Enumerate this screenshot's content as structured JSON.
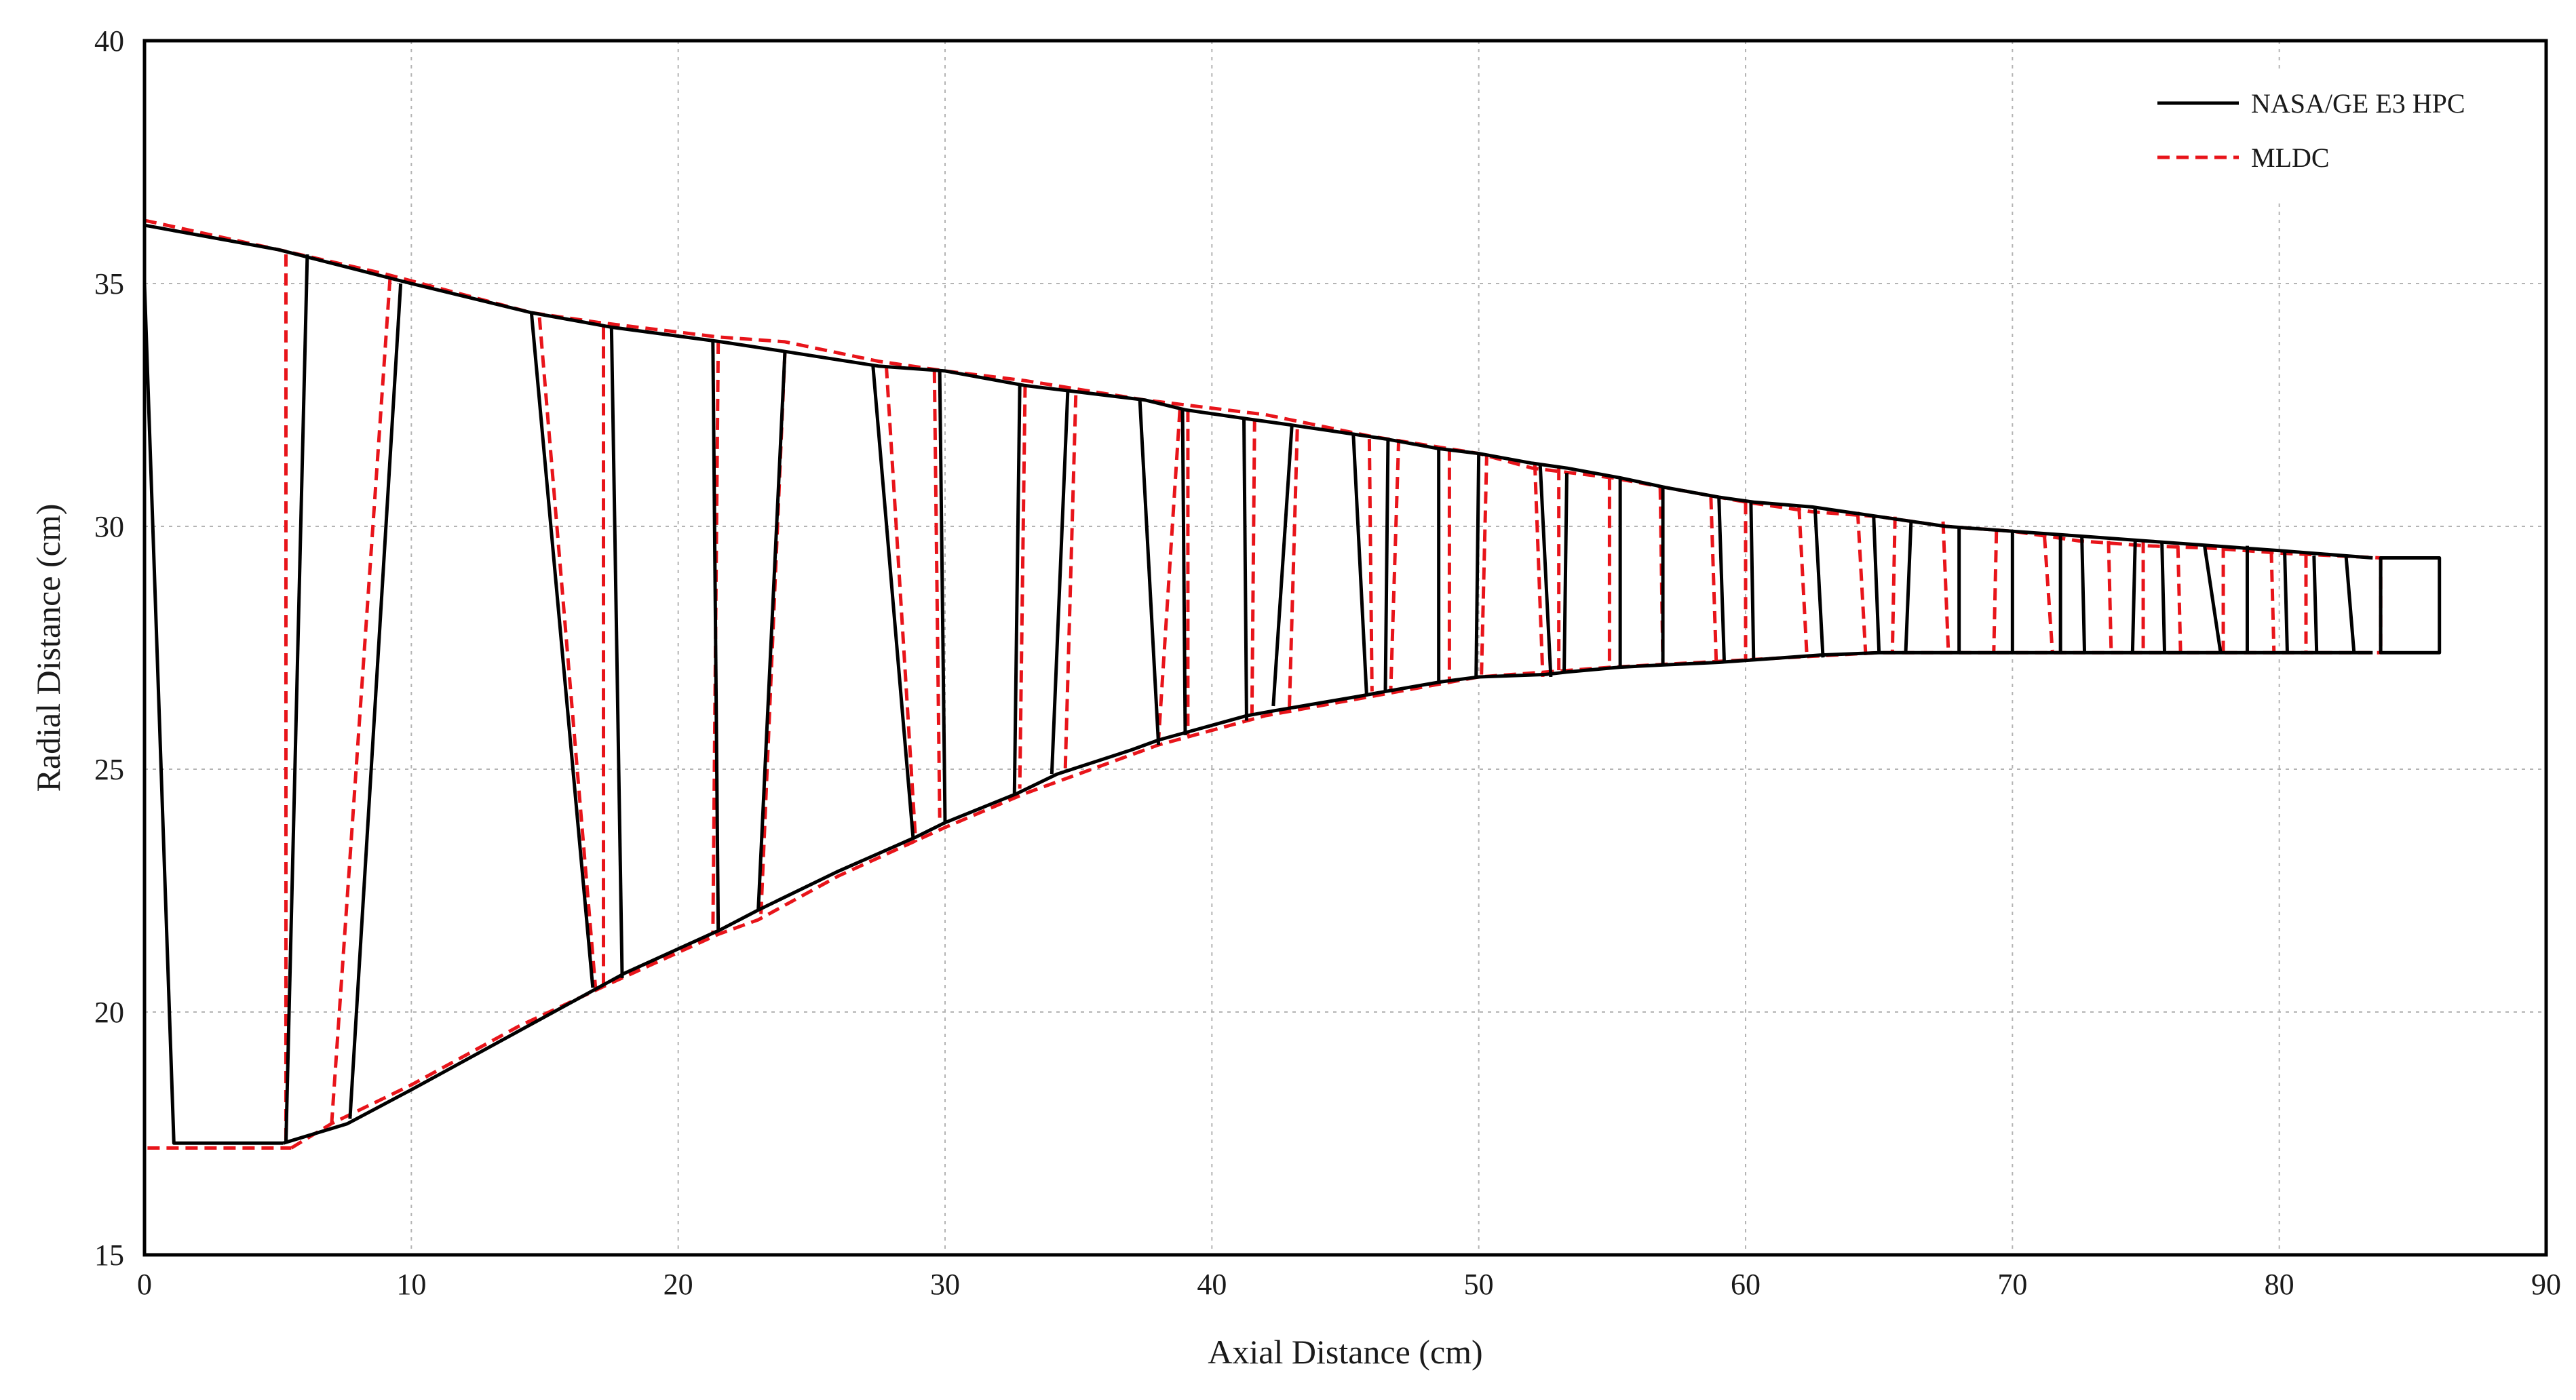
{
  "chart_data": {
    "type": "line",
    "title": "",
    "xlabel": "Axial Distance (cm)",
    "ylabel": "Radial Distance (cm)",
    "xlim": [
      0,
      90
    ],
    "ylim": [
      15,
      40
    ],
    "x_ticks": [
      0,
      10,
      20,
      30,
      40,
      50,
      60,
      70,
      80,
      90
    ],
    "y_ticks": [
      15,
      20,
      25,
      30,
      35,
      40
    ],
    "grid": true,
    "legend_position": "top-right",
    "series": [
      {
        "name": "NASA/GE E3 HPC",
        "color": "#000000",
        "dash": "solid",
        "hub": [
          [
            5.2,
            17.3
          ],
          [
            7.6,
            17.7
          ],
          [
            10,
            18.4
          ],
          [
            14,
            19.6
          ],
          [
            18,
            20.8
          ],
          [
            21.6,
            21.7
          ],
          [
            23,
            22.1
          ],
          [
            26,
            22.9
          ],
          [
            28.9,
            23.6
          ],
          [
            30,
            23.9
          ],
          [
            32.7,
            24.5
          ],
          [
            34.2,
            24.9
          ],
          [
            37,
            25.4
          ],
          [
            38,
            25.6
          ],
          [
            41.3,
            26.1
          ],
          [
            42.3,
            26.2
          ],
          [
            45.5,
            26.5
          ],
          [
            46.5,
            26.6
          ],
          [
            48.6,
            26.8
          ],
          [
            50,
            26.9
          ],
          [
            52.5,
            26.95
          ],
          [
            53.3,
            27.0
          ],
          [
            55.3,
            27.1
          ],
          [
            57,
            27.15
          ],
          [
            59,
            27.2
          ],
          [
            60.3,
            27.25
          ],
          [
            62.8,
            27.35
          ],
          [
            65,
            27.4
          ],
          [
            70,
            27.4
          ],
          [
            75,
            27.4
          ],
          [
            80,
            27.4
          ],
          [
            83.5,
            27.4
          ]
        ],
        "casing": [
          [
            0,
            36.2
          ],
          [
            5,
            35.7
          ],
          [
            10,
            35.0
          ],
          [
            14.5,
            34.4
          ],
          [
            17.5,
            34.1
          ],
          [
            21.6,
            33.8
          ],
          [
            24,
            33.6
          ],
          [
            27.5,
            33.3
          ],
          [
            30,
            33.2
          ],
          [
            33,
            32.9
          ],
          [
            34.5,
            32.8
          ],
          [
            37.5,
            32.6
          ],
          [
            39,
            32.4
          ],
          [
            41.5,
            32.2
          ],
          [
            42.8,
            32.1
          ],
          [
            45.3,
            31.9
          ],
          [
            46.5,
            31.8
          ],
          [
            48.5,
            31.6
          ],
          [
            50,
            31.5
          ],
          [
            52,
            31.3
          ],
          [
            53.3,
            31.2
          ],
          [
            55.3,
            31.0
          ],
          [
            57,
            30.8
          ],
          [
            59,
            30.6
          ],
          [
            60.3,
            30.5
          ],
          [
            62.5,
            30.4
          ],
          [
            65,
            30.2
          ],
          [
            67.5,
            30.0
          ],
          [
            70,
            29.9
          ],
          [
            72.5,
            29.8
          ],
          [
            75,
            29.7
          ],
          [
            77.5,
            29.6
          ],
          [
            80,
            29.5
          ],
          [
            83.5,
            29.35
          ]
        ],
        "closure": [
          [
            0,
            36.2
          ],
          [
            0,
            35.0
          ],
          [
            1.1,
            17.3
          ],
          [
            5.2,
            17.3
          ]
        ],
        "exit_box": [
          [
            83.8,
            29.35
          ],
          [
            86,
            29.35
          ],
          [
            86,
            27.4
          ],
          [
            83.8,
            27.4
          ]
        ],
        "blades": [
          [
            6.1,
            35.6,
            5.3,
            17.3
          ],
          [
            9.6,
            35.0,
            7.7,
            17.8
          ],
          [
            14.5,
            34.4,
            16.8,
            20.5
          ],
          [
            17.5,
            34.1,
            17.9,
            20.7
          ],
          [
            21.3,
            33.8,
            21.5,
            21.7
          ],
          [
            24,
            33.6,
            23,
            22.1
          ],
          [
            27.3,
            33.3,
            28.8,
            23.6
          ],
          [
            29.8,
            33.2,
            30,
            23.9
          ],
          [
            32.8,
            32.9,
            32.6,
            24.5
          ],
          [
            34.6,
            32.8,
            34,
            24.9
          ],
          [
            37.3,
            32.6,
            38,
            25.5
          ],
          [
            38.9,
            32.4,
            39,
            25.7
          ],
          [
            41.2,
            32.2,
            41.3,
            26.0
          ],
          [
            43,
            32.1,
            42.3,
            26.3
          ],
          [
            45.3,
            31.9,
            45.8,
            26.5
          ],
          [
            46.6,
            31.8,
            46.5,
            26.6
          ],
          [
            48.5,
            31.6,
            48.5,
            26.8
          ],
          [
            50,
            31.5,
            49.9,
            26.9
          ],
          [
            52.3,
            31.3,
            52.7,
            26.9
          ],
          [
            53.3,
            31.1,
            53.2,
            27.0
          ],
          [
            55.3,
            31.0,
            55.3,
            27.1
          ],
          [
            56.9,
            30.8,
            56.9,
            27.15
          ],
          [
            59,
            30.6,
            59.2,
            27.2
          ],
          [
            60.2,
            30.5,
            60.3,
            27.25
          ],
          [
            62.6,
            30.4,
            62.9,
            27.3
          ],
          [
            64.8,
            30.2,
            65,
            27.4
          ],
          [
            66.2,
            30.1,
            66,
            27.4
          ],
          [
            68,
            30.0,
            68,
            27.4
          ],
          [
            70,
            29.9,
            70,
            27.4
          ],
          [
            71.8,
            29.8,
            71.8,
            27.4
          ],
          [
            72.6,
            29.8,
            72.7,
            27.4
          ],
          [
            74.6,
            29.7,
            74.5,
            27.4
          ],
          [
            75.6,
            29.7,
            75.7,
            27.4
          ],
          [
            77.2,
            29.6,
            77.8,
            27.4
          ],
          [
            78.8,
            29.6,
            78.8,
            27.4
          ],
          [
            80.2,
            29.5,
            80.3,
            27.4
          ],
          [
            81.3,
            29.4,
            81.4,
            27.4
          ],
          [
            82.5,
            29.4,
            82.8,
            27.4
          ]
        ]
      },
      {
        "name": "MLDC",
        "color": "#e8141a",
        "dash": "dashed",
        "hub": [
          [
            5.5,
            17.2
          ],
          [
            7,
            17.7
          ],
          [
            10,
            18.5
          ],
          [
            14,
            19.7
          ],
          [
            17.5,
            20.6
          ],
          [
            21.5,
            21.6
          ],
          [
            23,
            21.9
          ],
          [
            26,
            22.8
          ],
          [
            30,
            23.8
          ],
          [
            33,
            24.5
          ],
          [
            38,
            25.5
          ],
          [
            42,
            26.1
          ],
          [
            46,
            26.5
          ],
          [
            50,
            26.9
          ],
          [
            55,
            27.1
          ],
          [
            60,
            27.25
          ],
          [
            65,
            27.4
          ],
          [
            70,
            27.4
          ],
          [
            75,
            27.4
          ],
          [
            80,
            27.4
          ],
          [
            83.8,
            27.4
          ]
        ],
        "casing": [
          [
            0,
            36.3
          ],
          [
            5,
            35.7
          ],
          [
            9,
            35.2
          ],
          [
            14.5,
            34.4
          ],
          [
            17,
            34.2
          ],
          [
            21.5,
            33.9
          ],
          [
            24,
            33.8
          ],
          [
            27.5,
            33.4
          ],
          [
            30,
            33.2
          ],
          [
            33,
            33.0
          ],
          [
            37.5,
            32.6
          ],
          [
            42,
            32.3
          ],
          [
            46,
            31.85
          ],
          [
            50,
            31.5
          ],
          [
            52,
            31.2
          ],
          [
            55,
            31.0
          ],
          [
            57,
            30.8
          ],
          [
            60,
            30.5
          ],
          [
            62.5,
            30.3
          ],
          [
            65,
            30.2
          ],
          [
            67.5,
            30.0
          ],
          [
            70,
            29.9
          ],
          [
            72.5,
            29.7
          ],
          [
            75,
            29.6
          ],
          [
            77.5,
            29.55
          ],
          [
            80,
            29.45
          ],
          [
            83.8,
            29.35
          ]
        ],
        "closure": [
          [
            0,
            36.3
          ],
          [
            0,
            17.2
          ],
          [
            5.5,
            17.2
          ]
        ],
        "blades": [
          [
            5.3,
            35.6,
            5.3,
            17.2
          ],
          [
            9.2,
            35.1,
            7.0,
            17.6
          ],
          [
            14.8,
            34.3,
            16.9,
            20.5
          ],
          [
            17.2,
            34.1,
            17.2,
            20.5
          ],
          [
            21.5,
            33.8,
            21.3,
            21.6
          ],
          [
            24,
            33.6,
            23.1,
            22.0
          ],
          [
            27.8,
            33.3,
            28.9,
            23.5
          ],
          [
            29.6,
            33.2,
            29.8,
            24.0
          ],
          [
            33,
            32.9,
            32.8,
            24.6
          ],
          [
            34.9,
            32.7,
            34.5,
            24.9
          ],
          [
            38.8,
            32.4,
            38,
            25.6
          ],
          [
            39.1,
            32.4,
            39.1,
            25.7
          ],
          [
            41.6,
            32.2,
            41.5,
            26.1
          ],
          [
            43.2,
            32.0,
            42.9,
            26.2
          ],
          [
            45.9,
            31.8,
            46,
            26.6
          ],
          [
            47,
            31.8,
            46.7,
            26.6
          ],
          [
            48.9,
            31.6,
            48.9,
            26.8
          ],
          [
            50.3,
            31.5,
            50.1,
            26.9
          ],
          [
            52.1,
            31.3,
            52.4,
            26.9
          ],
          [
            53,
            31.2,
            53.0,
            27.0
          ],
          [
            54.9,
            31.0,
            54.9,
            27.1
          ],
          [
            56.8,
            30.8,
            56.9,
            27.15
          ],
          [
            58.7,
            30.6,
            58.9,
            27.2
          ],
          [
            60,
            30.5,
            60.0,
            27.25
          ],
          [
            62,
            30.4,
            62.3,
            27.3
          ],
          [
            64.2,
            30.3,
            64.5,
            27.35
          ],
          [
            65.6,
            30.2,
            65.5,
            27.4
          ],
          [
            67.4,
            30.1,
            67.6,
            27.4
          ],
          [
            69.4,
            29.9,
            69.3,
            27.4
          ],
          [
            71.2,
            29.8,
            71.5,
            27.4
          ],
          [
            73.6,
            29.7,
            73.7,
            27.4
          ],
          [
            74.9,
            29.7,
            74.9,
            27.4
          ],
          [
            76.2,
            29.6,
            76.3,
            27.4
          ],
          [
            77.9,
            29.6,
            77.9,
            27.4
          ],
          [
            79.7,
            29.5,
            79.8,
            27.4
          ],
          [
            81,
            29.4,
            81.0,
            27.4
          ],
          [
            83.8,
            29.35,
            83.8,
            27.4
          ]
        ]
      }
    ]
  }
}
